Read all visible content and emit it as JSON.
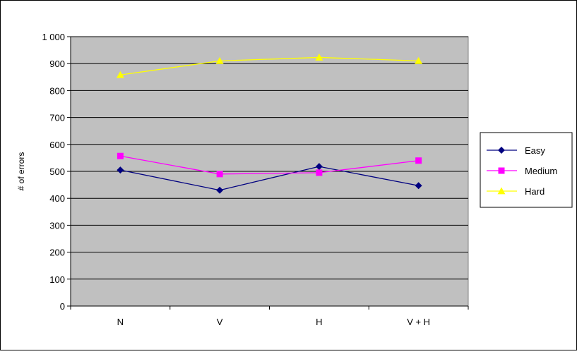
{
  "chart_data": {
    "type": "line",
    "title": "",
    "xlabel": "",
    "ylabel": "# of errors",
    "categories": [
      "N",
      "V",
      "H",
      "V + H"
    ],
    "ylim": [
      0,
      1000
    ],
    "ytick_step": 100,
    "ytick_labels": [
      "0",
      "100",
      "200",
      "300",
      "400",
      "500",
      "600",
      "700",
      "800",
      "900",
      "1 000"
    ],
    "grid": true,
    "legend_position": "right",
    "plot_background": "#c0c0c0",
    "series": [
      {
        "name": "Easy",
        "values": [
          505,
          430,
          518,
          447
        ],
        "color": "#000080",
        "marker": "diamond"
      },
      {
        "name": "Medium",
        "values": [
          557,
          490,
          495,
          540
        ],
        "color": "#ff00ff",
        "marker": "square"
      },
      {
        "name": "Hard",
        "values": [
          858,
          910,
          923,
          910
        ],
        "color": "#ffff00",
        "marker": "triangle"
      }
    ]
  }
}
